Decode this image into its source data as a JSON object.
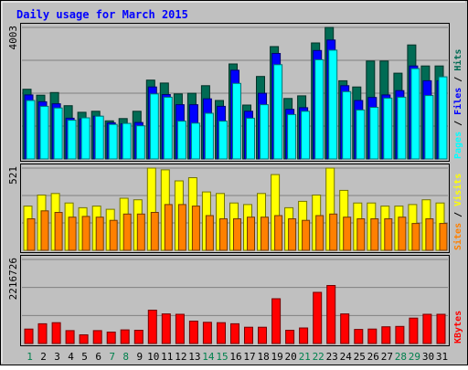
{
  "chart_data": {
    "type": "bar",
    "title": "Daily usage for March 2015",
    "days": [
      "1",
      "2",
      "3",
      "4",
      "5",
      "6",
      "7",
      "8",
      "9",
      "10",
      "11",
      "12",
      "13",
      "14",
      "15",
      "16",
      "17",
      "18",
      "19",
      "20",
      "21",
      "22",
      "23",
      "24",
      "25",
      "26",
      "27",
      "28",
      "29",
      "30",
      "31"
    ],
    "weekend_days": [
      "1",
      "7",
      "8",
      "14",
      "15",
      "21",
      "22",
      "28",
      "29"
    ],
    "colors": {
      "hits": "#006b54",
      "files": "#0000ff",
      "pages": "#00ffff",
      "visits": "#ffff00",
      "sites": "#ff8000",
      "kbytes": "#ff0000",
      "weekday_label": "#006b00",
      "weekend_label": "#00804d",
      "title": "#0000ff",
      "panel_bg": "#c0c0c0"
    },
    "panels": [
      {
        "id": "hits_files_pages",
        "axis_max_label": "4003",
        "ymax": 4003,
        "right_labels": [
          {
            "text": "Pages",
            "color": "#00ffff"
          },
          {
            "text": " / ",
            "color": "#000000"
          },
          {
            "text": "Files",
            "color": "#0000ff"
          },
          {
            "text": " / ",
            "color": "#000000"
          },
          {
            "text": "Hits",
            "color": "#006b54"
          }
        ],
        "series": [
          {
            "key": "hits",
            "values": [
              2120,
              1940,
              2020,
              1620,
              1420,
              1450,
              1160,
              1230,
              1450,
              2400,
              2310,
              1980,
              2000,
              2230,
              1780,
              2890,
              1640,
              2510,
              3420,
              1840,
              1920,
              3530,
              4003,
              2380,
              2190,
              2980,
              2980,
              2610,
              3470,
              2830,
              2830
            ]
          },
          {
            "key": "files",
            "values": [
              1950,
              1740,
              1680,
              1240,
              1220,
              1300,
              1100,
              1070,
              1110,
              2190,
              1960,
              1650,
              1650,
              1830,
              1600,
              2700,
              1450,
              2000,
              3210,
              1510,
              1560,
              3300,
              3620,
              2230,
              1780,
              1870,
              1950,
              2080,
              2830,
              2380,
              2380
            ]
          },
          {
            "key": "pages",
            "values": [
              1780,
              1600,
              1550,
              1180,
              1250,
              1300,
              1050,
              1080,
              1010,
              1980,
              1880,
              1150,
              1090,
              1390,
              1150,
              2300,
              1240,
              1650,
              2870,
              1350,
              1450,
              3020,
              3310,
              2050,
              1490,
              1570,
              1850,
              1880,
              2750,
              1930,
              2500
            ]
          }
        ]
      },
      {
        "id": "visits_sites",
        "axis_max_label": "521",
        "ymax": 521,
        "right_labels": [
          {
            "text": "Sites",
            "color": "#ff8000"
          },
          {
            "text": " / ",
            "color": "#000000"
          },
          {
            "text": "Visits",
            "color": "#ffff00"
          }
        ],
        "series": [
          {
            "key": "visits",
            "values": [
              280,
              350,
              360,
              300,
              270,
              280,
              260,
              330,
              320,
              521,
              510,
              440,
              460,
              370,
              360,
              300,
              290,
              360,
              480,
              270,
              310,
              350,
              521,
              380,
              300,
              300,
              280,
              280,
              290,
              320,
              300
            ]
          },
          {
            "key": "sites",
            "values": [
              200,
              250,
              240,
              210,
              215,
              210,
              190,
              230,
              230,
              240,
              290,
              290,
              280,
              220,
              200,
              200,
              210,
              210,
              220,
              200,
              190,
              220,
              230,
              210,
              200,
              200,
              200,
              210,
              170,
              200,
              170
            ]
          }
        ]
      },
      {
        "id": "kbytes",
        "axis_max_label": "2216726",
        "ymax": 2216726,
        "right_labels": [
          {
            "text": "KBytes",
            "color": "#ff0000"
          }
        ],
        "series": [
          {
            "key": "kbytes",
            "values": [
              380000,
              520000,
              550000,
              340000,
              230000,
              340000,
              300000,
              360000,
              350000,
              880000,
              780000,
              770000,
              590000,
              560000,
              550000,
              520000,
              430000,
              430000,
              1180000,
              350000,
              410000,
              1350000,
              1530000,
              780000,
              370000,
              380000,
              440000,
              450000,
              670000,
              770000,
              770000
            ]
          }
        ]
      }
    ]
  }
}
